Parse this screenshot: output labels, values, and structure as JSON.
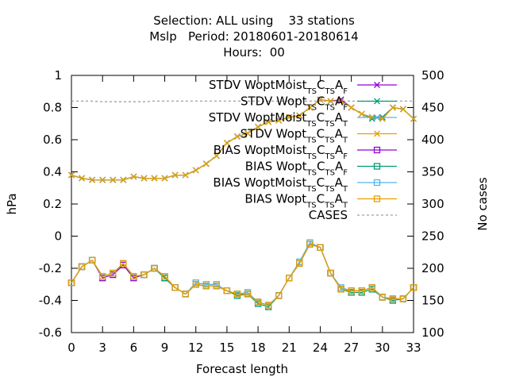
{
  "title": {
    "line1": "Selection: ALL using    33 stations",
    "line2": "Mslp   Period: 20180601-20180614",
    "line3": "Hours:  00"
  },
  "chart_data": {
    "type": "line",
    "title": "Selection: ALL using 33 stations / Mslp Period: 20180601-20180614 / Hours: 00",
    "xlabel": "Forecast length",
    "ylabel": "hPa",
    "y2label": "No cases",
    "xlim": [
      0,
      33
    ],
    "ylim": [
      -0.6,
      1.0
    ],
    "y2lim": [
      100,
      500
    ],
    "x_ticks": [
      0,
      3,
      6,
      9,
      12,
      15,
      18,
      21,
      24,
      27,
      30,
      33
    ],
    "y_ticks": [
      "-0.6",
      "-0.4",
      "-0.2",
      "0",
      "0.2",
      "0.4",
      "0.6",
      "0.8",
      "1"
    ],
    "y2_ticks": [
      "100",
      "150",
      "200",
      "250",
      "300",
      "350",
      "400",
      "450",
      "500"
    ],
    "grid": false,
    "legend_position": "top-right",
    "x": [
      0,
      1,
      2,
      3,
      4,
      5,
      6,
      7,
      8,
      9,
      10,
      11,
      12,
      13,
      14,
      15,
      16,
      17,
      18,
      19,
      20,
      21,
      22,
      23,
      24,
      25,
      26,
      27,
      28,
      29,
      30,
      31,
      32,
      33
    ],
    "series": [
      {
        "name": "STDV WoptMoist_TSC_TSA_F",
        "subs": [
          "TS",
          "TS",
          "F"
        ],
        "base": "STDV WoptMoist",
        "axis": "y",
        "style": "x",
        "color": "#9400d3",
        "values": [
          0.38,
          0.36,
          0.35,
          0.35,
          0.35,
          0.35,
          0.37,
          0.36,
          0.36,
          0.36,
          0.38,
          0.38,
          0.41,
          0.45,
          0.5,
          0.58,
          0.62,
          0.64,
          0.68,
          0.71,
          0.72,
          0.74,
          0.75,
          0.8,
          0.85,
          0.84,
          0.85,
          0.8,
          0.76,
          0.74,
          0.74,
          0.8,
          0.79,
          0.73
        ]
      },
      {
        "name": "STDV Wopt_TSC_TSA_F",
        "subs": [
          "TS",
          "TS",
          "F"
        ],
        "base": "STDV Wopt",
        "axis": "y",
        "style": "x",
        "color": "#009e73",
        "values": [
          0.38,
          0.36,
          0.35,
          0.35,
          0.35,
          0.35,
          0.37,
          0.36,
          0.36,
          0.36,
          0.38,
          0.38,
          0.41,
          0.45,
          0.5,
          0.58,
          0.62,
          0.64,
          0.68,
          0.71,
          0.72,
          0.74,
          0.75,
          0.8,
          0.85,
          0.84,
          0.84,
          0.8,
          0.76,
          0.73,
          0.74,
          0.8,
          0.79,
          0.73
        ]
      },
      {
        "name": "STDV WoptMoist_TSC_TSA_T",
        "subs": [
          "TS",
          "TS",
          "T"
        ],
        "base": "STDV WoptMoist",
        "axis": "y",
        "style": "x",
        "color": "#56b4e9",
        "values": [
          0.38,
          0.36,
          0.35,
          0.35,
          0.35,
          0.35,
          0.37,
          0.36,
          0.36,
          0.36,
          0.38,
          0.38,
          0.41,
          0.45,
          0.5,
          0.58,
          0.62,
          0.64,
          0.68,
          0.71,
          0.72,
          0.74,
          0.75,
          0.8,
          0.85,
          0.84,
          0.84,
          0.8,
          0.76,
          0.74,
          0.73,
          0.8,
          0.79,
          0.73
        ]
      },
      {
        "name": "STDV Wopt_TSC_TSA_T",
        "subs": [
          "TS",
          "TS",
          "T"
        ],
        "base": "STDV Wopt",
        "axis": "y",
        "style": "x",
        "color": "#e69f00",
        "values": [
          0.38,
          0.36,
          0.35,
          0.35,
          0.35,
          0.35,
          0.37,
          0.36,
          0.36,
          0.36,
          0.38,
          0.38,
          0.41,
          0.45,
          0.5,
          0.58,
          0.62,
          0.64,
          0.68,
          0.71,
          0.72,
          0.74,
          0.75,
          0.8,
          0.85,
          0.84,
          0.84,
          0.8,
          0.76,
          0.74,
          0.73,
          0.8,
          0.79,
          0.73
        ]
      },
      {
        "name": "BIAS WoptMoist_TSC_TSA_F",
        "subs": [
          "TS",
          "TS",
          "F"
        ],
        "base": "BIAS WoptMoist",
        "axis": "y",
        "style": "square",
        "color": "#9400d3",
        "values": [
          -0.29,
          -0.19,
          -0.15,
          -0.26,
          -0.24,
          -0.18,
          -0.26,
          -0.24,
          -0.2,
          -0.26,
          -0.32,
          -0.36,
          -0.3,
          -0.31,
          -0.31,
          -0.34,
          -0.36,
          -0.36,
          -0.41,
          -0.43,
          -0.37,
          -0.26,
          -0.17,
          -0.05,
          -0.07,
          -0.23,
          -0.33,
          -0.34,
          -0.34,
          -0.32,
          -0.38,
          -0.39,
          -0.39,
          -0.32
        ]
      },
      {
        "name": "BIAS Wopt_TSC_TSA_F",
        "subs": [
          "TS",
          "TS",
          "F"
        ],
        "base": "BIAS Wopt",
        "axis": "y",
        "style": "square",
        "color": "#009e73",
        "values": [
          -0.29,
          -0.19,
          -0.15,
          -0.25,
          -0.23,
          -0.17,
          -0.25,
          -0.24,
          -0.2,
          -0.26,
          -0.32,
          -0.36,
          -0.3,
          -0.31,
          -0.31,
          -0.34,
          -0.37,
          -0.36,
          -0.42,
          -0.44,
          -0.37,
          -0.26,
          -0.17,
          -0.05,
          -0.07,
          -0.23,
          -0.33,
          -0.35,
          -0.35,
          -0.33,
          -0.38,
          -0.4,
          -0.39,
          -0.32
        ]
      },
      {
        "name": "BIAS WoptMoist_TSC_TSA_T",
        "subs": [
          "TS",
          "TS",
          "T"
        ],
        "base": "BIAS WoptMoist",
        "axis": "y",
        "style": "square",
        "color": "#56b4e9",
        "values": [
          -0.29,
          -0.19,
          -0.15,
          -0.25,
          -0.23,
          -0.17,
          -0.25,
          -0.24,
          -0.2,
          -0.25,
          -0.32,
          -0.36,
          -0.29,
          -0.3,
          -0.3,
          -0.34,
          -0.36,
          -0.35,
          -0.41,
          -0.43,
          -0.37,
          -0.26,
          -0.16,
          -0.04,
          -0.07,
          -0.23,
          -0.32,
          -0.34,
          -0.34,
          -0.32,
          -0.38,
          -0.39,
          -0.39,
          -0.32
        ]
      },
      {
        "name": "BIAS Wopt_TSC_TSA_T",
        "subs": [
          "TS",
          "TS",
          "T"
        ],
        "base": "BIAS Wopt",
        "axis": "y",
        "style": "square",
        "color": "#e69f00",
        "values": [
          -0.29,
          -0.19,
          -0.15,
          -0.25,
          -0.23,
          -0.17,
          -0.25,
          -0.24,
          -0.2,
          -0.25,
          -0.32,
          -0.36,
          -0.3,
          -0.31,
          -0.31,
          -0.34,
          -0.36,
          -0.36,
          -0.41,
          -0.43,
          -0.37,
          -0.26,
          -0.17,
          -0.05,
          -0.07,
          -0.23,
          -0.33,
          -0.34,
          -0.34,
          -0.32,
          -0.38,
          -0.39,
          -0.39,
          -0.32
        ]
      },
      {
        "name": "CASES",
        "subs": [],
        "base": "CASES",
        "axis": "y2",
        "style": "dashed",
        "color": "#a0a0a0",
        "values": [
          460,
          460,
          460,
          459,
          459,
          459,
          459,
          459,
          460,
          460,
          460,
          460,
          460,
          460,
          460,
          460,
          460,
          460,
          460,
          460,
          460,
          460,
          460,
          460,
          460,
          460,
          460,
          460,
          460,
          460,
          460,
          460,
          460,
          460
        ]
      }
    ]
  }
}
